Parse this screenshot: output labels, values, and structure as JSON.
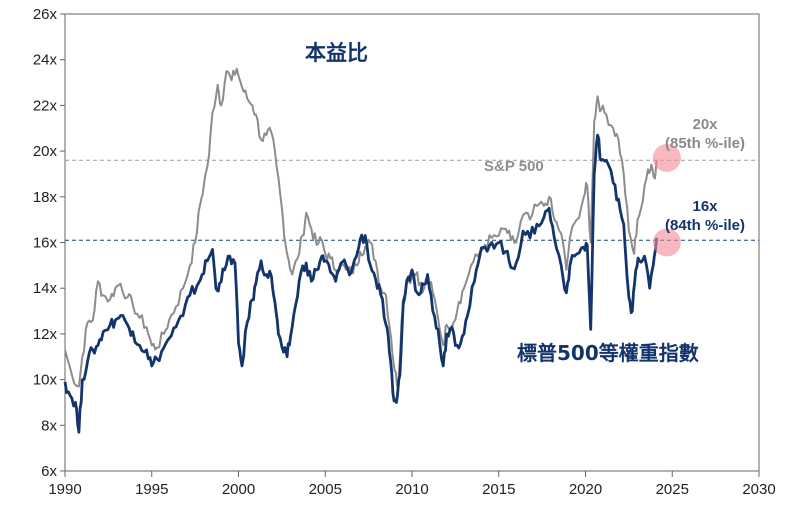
{
  "chart_data": {
    "type": "line",
    "title": "本益比",
    "xlim": [
      1990,
      2030
    ],
    "ylim": [
      6,
      26
    ],
    "x_ticks": [
      "1990",
      "1995",
      "2000",
      "2005",
      "2010",
      "2015",
      "2020",
      "2025",
      "2030"
    ],
    "y_ticks": [
      "6x",
      "8x",
      "10x",
      "12x",
      "14x",
      "16x",
      "18x",
      "20x",
      "22x",
      "24x",
      "26x"
    ],
    "reference_lines": [
      {
        "name": "sp500-reference",
        "y": 19.6,
        "color": "#9a9a9a"
      },
      {
        "name": "equal-weight-reference",
        "y": 16.1,
        "color": "#1c4673"
      }
    ],
    "series": [
      {
        "name": "S&P 500",
        "label": "S&P 500",
        "color": "#8c8c8c",
        "points": [
          [
            1990.0,
            11.3
          ],
          [
            1990.4,
            10.2
          ],
          [
            1990.8,
            9.7
          ],
          [
            1991.0,
            11.0
          ],
          [
            1991.3,
            12.5
          ],
          [
            1991.6,
            12.6
          ],
          [
            1991.9,
            14.3
          ],
          [
            1992.2,
            13.7
          ],
          [
            1992.6,
            13.5
          ],
          [
            1992.9,
            14.0
          ],
          [
            1993.2,
            14.2
          ],
          [
            1993.6,
            13.6
          ],
          [
            1993.9,
            13.3
          ],
          [
            1994.3,
            12.7
          ],
          [
            1994.7,
            12.3
          ],
          [
            1995.0,
            11.5
          ],
          [
            1995.3,
            11.4
          ],
          [
            1995.7,
            12.0
          ],
          [
            1996.0,
            12.6
          ],
          [
            1996.4,
            13.2
          ],
          [
            1996.8,
            14.0
          ],
          [
            1997.2,
            15.0
          ],
          [
            1997.5,
            16.0
          ],
          [
            1997.8,
            17.7
          ],
          [
            1998.0,
            18.5
          ],
          [
            1998.3,
            19.8
          ],
          [
            1998.5,
            21.7
          ],
          [
            1998.8,
            22.9
          ],
          [
            1999.0,
            22.0
          ],
          [
            1999.3,
            23.5
          ],
          [
            1999.6,
            23.1
          ],
          [
            1999.9,
            23.6
          ],
          [
            2000.2,
            22.8
          ],
          [
            2000.5,
            22.3
          ],
          [
            2000.8,
            22.0
          ],
          [
            2001.0,
            21.6
          ],
          [
            2001.3,
            20.5
          ],
          [
            2001.6,
            20.7
          ],
          [
            2001.9,
            20.8
          ],
          [
            2002.2,
            19.3
          ],
          [
            2002.5,
            17.5
          ],
          [
            2002.7,
            16.0
          ],
          [
            2002.9,
            15.2
          ],
          [
            2003.1,
            14.6
          ],
          [
            2003.4,
            15.3
          ],
          [
            2003.7,
            16.3
          ],
          [
            2003.9,
            17.3
          ],
          [
            2004.2,
            16.6
          ],
          [
            2004.5,
            15.9
          ],
          [
            2004.8,
            16.1
          ],
          [
            2005.0,
            15.5
          ],
          [
            2005.3,
            15.3
          ],
          [
            2005.6,
            14.8
          ],
          [
            2005.9,
            15.0
          ],
          [
            2006.2,
            14.8
          ],
          [
            2006.5,
            14.7
          ],
          [
            2006.8,
            15.0
          ],
          [
            2007.0,
            15.6
          ],
          [
            2007.3,
            15.8
          ],
          [
            2007.6,
            16.0
          ],
          [
            2007.9,
            15.2
          ],
          [
            2008.2,
            14.0
          ],
          [
            2008.5,
            13.7
          ],
          [
            2008.8,
            11.8
          ],
          [
            2009.0,
            10.4
          ],
          [
            2009.2,
            9.7
          ],
          [
            2009.4,
            12.6
          ],
          [
            2009.7,
            14.3
          ],
          [
            2010.0,
            14.5
          ],
          [
            2010.3,
            14.7
          ],
          [
            2010.6,
            13.8
          ],
          [
            2010.9,
            14.5
          ],
          [
            2011.2,
            13.8
          ],
          [
            2011.5,
            12.7
          ],
          [
            2011.8,
            11.5
          ],
          [
            2012.0,
            12.4
          ],
          [
            2012.4,
            12.5
          ],
          [
            2012.7,
            13.4
          ],
          [
            2013.0,
            14.0
          ],
          [
            2013.4,
            15.0
          ],
          [
            2013.8,
            15.4
          ],
          [
            2014.2,
            15.9
          ],
          [
            2014.6,
            16.2
          ],
          [
            2015.0,
            16.3
          ],
          [
            2015.4,
            16.6
          ],
          [
            2015.7,
            16.1
          ],
          [
            2016.0,
            16.0
          ],
          [
            2016.4,
            17.2
          ],
          [
            2016.8,
            17.0
          ],
          [
            2017.2,
            17.6
          ],
          [
            2017.6,
            17.6
          ],
          [
            2017.9,
            18.0
          ],
          [
            2018.2,
            17.0
          ],
          [
            2018.6,
            16.4
          ],
          [
            2018.9,
            14.8
          ],
          [
            2019.1,
            16.2
          ],
          [
            2019.5,
            17.0
          ],
          [
            2019.9,
            18.0
          ],
          [
            2020.1,
            18.5
          ],
          [
            2020.3,
            16.0
          ],
          [
            2020.5,
            21.3
          ],
          [
            2020.7,
            22.4
          ],
          [
            2020.9,
            21.8
          ],
          [
            2021.2,
            21.6
          ],
          [
            2021.6,
            21.0
          ],
          [
            2021.9,
            20.5
          ],
          [
            2022.2,
            19.0
          ],
          [
            2022.5,
            16.5
          ],
          [
            2022.8,
            15.5
          ],
          [
            2023.0,
            17.0
          ],
          [
            2023.3,
            17.8
          ],
          [
            2023.6,
            19.2
          ],
          [
            2023.8,
            19.4
          ],
          [
            2024.0,
            18.8
          ],
          [
            2024.1,
            19.6
          ]
        ]
      },
      {
        "name": "標普500等權重指數",
        "label": "標普500等權重指數",
        "color": "#13356b",
        "points": [
          [
            1990.0,
            9.9
          ],
          [
            1990.3,
            9.3
          ],
          [
            1990.6,
            9.0
          ],
          [
            1990.8,
            7.7
          ],
          [
            1991.0,
            10.0
          ],
          [
            1991.3,
            10.8
          ],
          [
            1991.6,
            11.3
          ],
          [
            1991.9,
            11.5
          ],
          [
            1992.2,
            12.1
          ],
          [
            1992.6,
            12.4
          ],
          [
            1992.9,
            12.6
          ],
          [
            1993.2,
            12.8
          ],
          [
            1993.6,
            12.4
          ],
          [
            1993.9,
            12.1
          ],
          [
            1994.3,
            11.5
          ],
          [
            1994.7,
            11.3
          ],
          [
            1995.0,
            10.6
          ],
          [
            1995.3,
            10.9
          ],
          [
            1995.7,
            11.4
          ],
          [
            1996.0,
            11.8
          ],
          [
            1996.4,
            12.3
          ],
          [
            1996.8,
            12.8
          ],
          [
            1997.2,
            13.7
          ],
          [
            1997.6,
            14.1
          ],
          [
            1997.9,
            14.6
          ],
          [
            1998.2,
            15.2
          ],
          [
            1998.5,
            15.7
          ],
          [
            1998.7,
            14.0
          ],
          [
            1998.9,
            14.2
          ],
          [
            1999.2,
            14.8
          ],
          [
            1999.5,
            15.4
          ],
          [
            1999.8,
            15.1
          ],
          [
            2000.0,
            11.6
          ],
          [
            2000.2,
            10.6
          ],
          [
            2000.5,
            12.5
          ],
          [
            2000.8,
            13.5
          ],
          [
            2001.0,
            14.2
          ],
          [
            2001.3,
            15.2
          ],
          [
            2001.6,
            14.6
          ],
          [
            2001.9,
            14.5
          ],
          [
            2002.1,
            13.4
          ],
          [
            2002.3,
            12.0
          ],
          [
            2002.6,
            11.2
          ],
          [
            2002.8,
            11.0
          ],
          [
            2003.0,
            11.9
          ],
          [
            2003.3,
            13.3
          ],
          [
            2003.6,
            14.7
          ],
          [
            2003.9,
            15.1
          ],
          [
            2004.2,
            14.3
          ],
          [
            2004.5,
            14.8
          ],
          [
            2004.8,
            15.4
          ],
          [
            2005.0,
            15.2
          ],
          [
            2005.3,
            14.7
          ],
          [
            2005.6,
            14.3
          ],
          [
            2005.9,
            15.1
          ],
          [
            2006.2,
            15.0
          ],
          [
            2006.5,
            14.7
          ],
          [
            2006.8,
            15.4
          ],
          [
            2007.0,
            16.1
          ],
          [
            2007.3,
            16.3
          ],
          [
            2007.6,
            15.0
          ],
          [
            2007.9,
            14.4
          ],
          [
            2008.2,
            13.7
          ],
          [
            2008.5,
            12.4
          ],
          [
            2008.7,
            11.2
          ],
          [
            2008.9,
            9.4
          ],
          [
            2009.1,
            9.0
          ],
          [
            2009.3,
            10.2
          ],
          [
            2009.5,
            13.4
          ],
          [
            2009.8,
            14.5
          ],
          [
            2010.0,
            14.8
          ],
          [
            2010.3,
            13.8
          ],
          [
            2010.6,
            14.2
          ],
          [
            2010.9,
            14.6
          ],
          [
            2011.2,
            13.0
          ],
          [
            2011.5,
            12.2
          ],
          [
            2011.8,
            10.6
          ],
          [
            2012.0,
            12.0
          ],
          [
            2012.3,
            12.3
          ],
          [
            2012.6,
            11.5
          ],
          [
            2012.9,
            11.9
          ],
          [
            2013.2,
            12.8
          ],
          [
            2013.6,
            14.3
          ],
          [
            2013.9,
            15.4
          ],
          [
            2014.2,
            15.8
          ],
          [
            2014.6,
            16.0
          ],
          [
            2015.0,
            16.0
          ],
          [
            2015.4,
            15.6
          ],
          [
            2015.7,
            14.9
          ],
          [
            2016.0,
            15.1
          ],
          [
            2016.4,
            16.5
          ],
          [
            2016.8,
            16.2
          ],
          [
            2017.2,
            16.8
          ],
          [
            2017.6,
            17.1
          ],
          [
            2017.9,
            17.5
          ],
          [
            2018.2,
            16.2
          ],
          [
            2018.6,
            15.0
          ],
          [
            2018.9,
            13.8
          ],
          [
            2019.1,
            15.0
          ],
          [
            2019.5,
            15.5
          ],
          [
            2019.9,
            15.8
          ],
          [
            2020.1,
            15.9
          ],
          [
            2020.3,
            12.2
          ],
          [
            2020.5,
            19.0
          ],
          [
            2020.7,
            20.7
          ],
          [
            2020.9,
            19.6
          ],
          [
            2021.2,
            19.6
          ],
          [
            2021.6,
            18.6
          ],
          [
            2021.9,
            17.9
          ],
          [
            2022.2,
            16.8
          ],
          [
            2022.5,
            13.6
          ],
          [
            2022.7,
            13.0
          ],
          [
            2022.9,
            14.8
          ],
          [
            2023.1,
            15.2
          ],
          [
            2023.4,
            15.4
          ],
          [
            2023.7,
            14.0
          ],
          [
            2023.9,
            15.0
          ],
          [
            2024.1,
            16.2
          ]
        ]
      }
    ],
    "annotations": [
      {
        "name": "sp500-current-label",
        "line1": "20x",
        "line2": "(85th %-ile)"
      },
      {
        "name": "equal-weight-current-label",
        "line1": "16x",
        "line2": "(84th %-ile)"
      }
    ],
    "highlights": [
      {
        "name": "sp500-current-marker",
        "x": 2024.0,
        "y": 19.7
      },
      {
        "name": "equal-weight-current-marker",
        "x": 2024.0,
        "y": 16.0
      }
    ],
    "colors": {
      "sp500": "#8c8c8c",
      "equal_weight": "#13356b",
      "highlight": "#f28b94",
      "axis": "#555555"
    }
  }
}
